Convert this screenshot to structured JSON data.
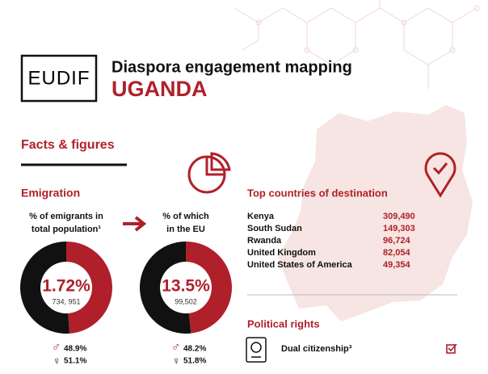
{
  "header": {
    "logo": "EUDIF",
    "title": "Diaspora engagement mapping",
    "country": "UGANDA"
  },
  "section_title": "Facts & figures",
  "emigration": {
    "title": "Emigration",
    "donuts": [
      {
        "caption": [
          "% of emigrants in",
          "total population¹"
        ],
        "value": "1.72%",
        "count": "734, 951",
        "male": 48.9,
        "male_label": "48.9%",
        "female": 51.1,
        "female_label": "51.1%"
      },
      {
        "caption": [
          "% of which",
          "in the EU"
        ],
        "value": "13.5%",
        "count": "99,502",
        "male": 48.2,
        "male_label": "48.2%",
        "female": 51.8,
        "female_label": "51.8%"
      }
    ]
  },
  "destinations": {
    "title": "Top countries of destination",
    "rows": [
      [
        "Kenya",
        "309,490"
      ],
      [
        "South Sudan",
        "149,303"
      ],
      [
        "Rwanda",
        "96,724"
      ],
      [
        "United Kingdom",
        "82,054"
      ],
      [
        "United States of America",
        "49,354"
      ]
    ]
  },
  "political_rights": {
    "title": "Political rights",
    "items": [
      "Dual citizenship³"
    ]
  }
}
